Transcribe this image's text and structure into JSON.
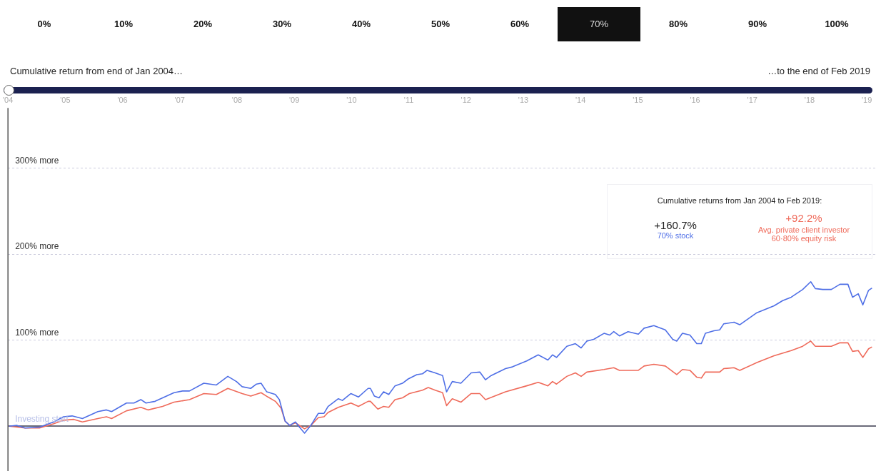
{
  "chart_data": {
    "type": "line",
    "subtitle": "Cumulative return from end of Jan 2004…",
    "legend_title": "Cumulative returns from Jan 2004 to Feb 2019:",
    "annotations": [
      "…to the end of Feb 2019",
      "+160.7%",
      "+92.2%",
      "0%",
      "10%",
      "20%",
      "30%",
      "40%",
      "50%",
      "60%",
      "70%",
      "80%",
      "90%",
      "100%"
    ],
    "xlim": [
      2004,
      2019.16
    ],
    "xticks": [
      {
        "value": 2004,
        "label": "'04"
      },
      {
        "value": 2005,
        "label": "'05"
      },
      {
        "value": 2006,
        "label": "'06"
      },
      {
        "value": 2007,
        "label": "'07"
      },
      {
        "value": 2008,
        "label": "'08"
      },
      {
        "value": 2009,
        "label": "'09"
      },
      {
        "value": 2010,
        "label": "'10"
      },
      {
        "value": 2011,
        "label": "'11"
      },
      {
        "value": 2012,
        "label": "'12"
      },
      {
        "value": 2013,
        "label": "'13"
      },
      {
        "value": 2014,
        "label": "'14"
      },
      {
        "value": 2015,
        "label": "'15"
      },
      {
        "value": 2016,
        "label": "'16"
      },
      {
        "value": 2017,
        "label": "'17"
      },
      {
        "value": 2018,
        "label": "'18"
      },
      {
        "value": 2019,
        "label": "'19"
      }
    ],
    "ylim": [
      -52,
      370
    ],
    "yticks": [
      {
        "value": 0,
        "label": "Investing start"
      },
      {
        "value": 100,
        "label": "100% more"
      },
      {
        "value": 200,
        "label": "200% more"
      },
      {
        "value": 300,
        "label": "300% more"
      }
    ],
    "grid": "y",
    "legend": "top right",
    "marker": "none",
    "line_style": "solid",
    "series": [
      {
        "name": "70% stock",
        "color": "#4f6fe6",
        "x": [
          2004.02,
          2004.15,
          2004.3,
          2004.55,
          2004.8,
          2004.97,
          2005.12,
          2005.3,
          2005.57,
          2005.72,
          2005.81,
          2006.07,
          2006.2,
          2006.32,
          2006.41,
          2006.57,
          2006.9,
          2007.05,
          2007.17,
          2007.42,
          2007.64,
          2007.84,
          2007.99,
          2008.09,
          2008.24,
          2008.34,
          2008.42,
          2008.52,
          2008.67,
          2008.74,
          2008.84,
          2008.92,
          2009.02,
          2009.09,
          2009.18,
          2009.29,
          2009.42,
          2009.52,
          2009.59,
          2009.77,
          2009.84,
          2009.99,
          2010.12,
          2010.29,
          2010.33,
          2010.4,
          2010.48,
          2010.56,
          2010.65,
          2010.76,
          2010.89,
          2010.99,
          2011.14,
          2011.24,
          2011.32,
          2011.46,
          2011.59,
          2011.66,
          2011.76,
          2011.91,
          2012.09,
          2012.24,
          2012.34,
          2012.44,
          2012.69,
          2012.81,
          2013.06,
          2013.26,
          2013.43,
          2013.51,
          2013.58,
          2013.76,
          2013.91,
          2014.01,
          2014.11,
          2014.23,
          2014.41,
          2014.51,
          2014.58,
          2014.68,
          2014.83,
          2015.01,
          2015.11,
          2015.28,
          2015.48,
          2015.61,
          2015.68,
          2015.78,
          2015.91,
          2016.03,
          2016.11,
          2016.18,
          2016.33,
          2016.43,
          2016.5,
          2016.68,
          2016.78,
          2016.93,
          2017.08,
          2017.38,
          2017.53,
          2017.68,
          2017.88,
          2018.02,
          2018.1,
          2018.23,
          2018.38,
          2018.53,
          2018.67,
          2018.75,
          2018.85,
          2018.93,
          2019.03,
          2019.09
        ],
        "values": [
          0,
          1,
          -2,
          -1,
          5,
          11,
          12,
          9,
          17,
          19,
          17,
          27,
          27,
          31,
          27,
          29,
          39,
          41,
          41,
          50,
          48,
          58,
          52,
          46,
          44,
          49,
          50,
          40,
          37,
          31,
          6,
          1,
          5,
          -1,
          -8,
          1,
          15,
          15,
          23,
          32,
          30,
          38,
          34,
          44,
          44,
          35,
          33,
          40,
          37,
          47,
          50,
          55,
          60,
          61,
          65,
          62,
          59,
          40,
          52,
          50,
          62,
          63,
          54,
          59,
          67,
          69,
          76,
          83,
          77,
          83,
          80,
          93,
          96,
          91,
          99,
          101,
          108,
          106,
          110,
          105,
          110,
          107,
          114,
          117,
          112,
          101,
          99,
          108,
          106,
          96,
          96,
          108,
          111,
          112,
          119,
          121,
          118,
          125,
          132,
          140,
          146,
          150,
          159,
          168,
          160,
          159,
          159,
          165,
          165,
          150,
          154,
          141,
          158,
          160.7
        ]
      },
      {
        "name": "Avg. private client investor 60·80% equity risk",
        "color": "#ef6a5a",
        "x": [
          2004.02,
          2004.3,
          2004.55,
          2004.8,
          2004.97,
          2005.15,
          2005.3,
          2005.57,
          2005.72,
          2005.81,
          2006.07,
          2006.32,
          2006.45,
          2006.7,
          2006.9,
          2007.17,
          2007.42,
          2007.64,
          2007.84,
          2008.09,
          2008.24,
          2008.42,
          2008.54,
          2008.67,
          2008.77,
          2008.84,
          2008.92,
          2009.02,
          2009.18,
          2009.29,
          2009.42,
          2009.52,
          2009.59,
          2009.77,
          2009.99,
          2010.12,
          2010.29,
          2010.33,
          2010.46,
          2010.56,
          2010.65,
          2010.76,
          2010.89,
          2011.01,
          2011.24,
          2011.34,
          2011.46,
          2011.59,
          2011.66,
          2011.76,
          2011.91,
          2012.09,
          2012.24,
          2012.34,
          2012.69,
          2013.06,
          2013.26,
          2013.43,
          2013.51,
          2013.58,
          2013.76,
          2013.91,
          2014.01,
          2014.11,
          2014.41,
          2014.58,
          2014.68,
          2015.01,
          2015.11,
          2015.28,
          2015.48,
          2015.68,
          2015.78,
          2015.91,
          2016.03,
          2016.11,
          2016.18,
          2016.43,
          2016.5,
          2016.68,
          2016.78,
          2017.08,
          2017.38,
          2017.68,
          2017.88,
          2018.02,
          2018.1,
          2018.38,
          2018.53,
          2018.67,
          2018.75,
          2018.85,
          2018.93,
          2019.03,
          2019.09
        ],
        "values": [
          0,
          -2,
          -2,
          3,
          7,
          8,
          5,
          9,
          11,
          9,
          18,
          22,
          19,
          23,
          28,
          31,
          38,
          37,
          44,
          38,
          35,
          39,
          34,
          29,
          21,
          6,
          1,
          4,
          -3,
          1,
          10,
          11,
          16,
          22,
          27,
          23,
          29,
          29,
          20,
          23,
          22,
          31,
          33,
          38,
          42,
          45,
          42,
          39,
          24,
          32,
          28,
          38,
          38,
          31,
          40,
          47,
          51,
          47,
          52,
          49,
          58,
          62,
          58,
          63,
          66,
          68,
          65,
          65,
          70,
          72,
          70,
          60,
          66,
          65,
          57,
          56,
          63,
          63,
          67,
          68,
          65,
          74,
          82,
          88,
          93,
          99,
          93,
          93,
          97,
          97,
          87,
          88,
          80,
          90,
          92.2
        ]
      }
    ]
  }
}
